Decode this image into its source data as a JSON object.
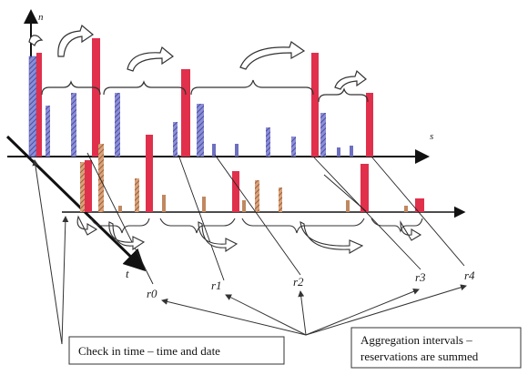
{
  "axes": {
    "vertical_label": "n",
    "horizontal_label": "s",
    "diagonal_label": "t"
  },
  "interval_labels": [
    "r0",
    "r1",
    "r2",
    "r3",
    "r4"
  ],
  "notes": {
    "checkin_text": "Check in time – time and date",
    "aggregation_line1": "Aggregation intervals –",
    "aggregation_line2": "reservations are summed"
  },
  "colors": {
    "blue_bar": "#6d6fc0",
    "red_bar": "#e0304c",
    "brown_bar": "#c08860",
    "axis": "#111111"
  }
}
